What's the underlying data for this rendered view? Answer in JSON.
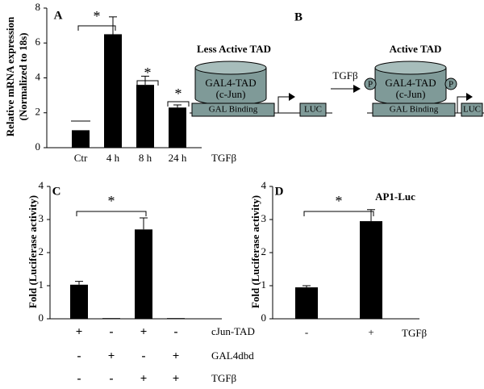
{
  "chart_data": [
    {
      "type": "bar",
      "panel": "A",
      "ylabel": [
        "Relative mRNA expression",
        "(Normalized to 18s)"
      ],
      "categories": [
        "Ctr",
        "4 h",
        "8 h",
        "24 h"
      ],
      "x_label": "TGFβ",
      "values": [
        1,
        6.5,
        3.6,
        2.3
      ],
      "errors": [
        0,
        1.0,
        0.5,
        0.15
      ],
      "color": "#000000",
      "ylim": [
        0,
        8
      ],
      "yticks": [
        0,
        2,
        4,
        6,
        8
      ],
      "annotations": [
        "*",
        "*",
        "*"
      ]
    },
    {
      "type": "bar",
      "panel": "C",
      "ylabel": [
        "Fold (Luciferase activity)"
      ],
      "values": [
        1.03,
        0.02,
        2.7,
        0.02
      ],
      "errors": [
        0.1,
        0,
        0.35,
        0
      ],
      "color": "#000000",
      "conditions": [
        {
          "name": "cJun-TAD",
          "signs": [
            "+",
            "-",
            "+",
            "-"
          ]
        },
        {
          "name": "GAL4dbd",
          "signs": [
            "-",
            "+",
            "-",
            "+"
          ]
        },
        {
          "name": "TGFβ",
          "signs": [
            "-",
            "-",
            "+",
            "+"
          ]
        }
      ],
      "ylim": [
        0,
        4
      ],
      "yticks": [
        0,
        1,
        2,
        3,
        4
      ],
      "annotations": [
        "*"
      ]
    },
    {
      "type": "bar",
      "panel": "D",
      "title": "AP1-Luc",
      "ylabel": [
        "Fold (Luciferase activity)"
      ],
      "categories": [
        "-",
        "+"
      ],
      "x_label": "TGFβ",
      "values": [
        0.95,
        2.95
      ],
      "errors": [
        0.05,
        0.35
      ],
      "color": "#000000",
      "ylim": [
        0,
        4
      ],
      "yticks": [
        0,
        1,
        2,
        3,
        4
      ],
      "annotations": [
        "*"
      ]
    }
  ],
  "diagram": {
    "panel": "B",
    "left_title": "Less Active TAD",
    "right_title": "Active TAD",
    "tad_label": [
      "GAL4-TAD",
      "(c-Jun)"
    ],
    "binding_label": "GAL Binding",
    "reporter_label": "LUC",
    "stimulus_label": "TGFβ",
    "phospho_label": "P"
  }
}
